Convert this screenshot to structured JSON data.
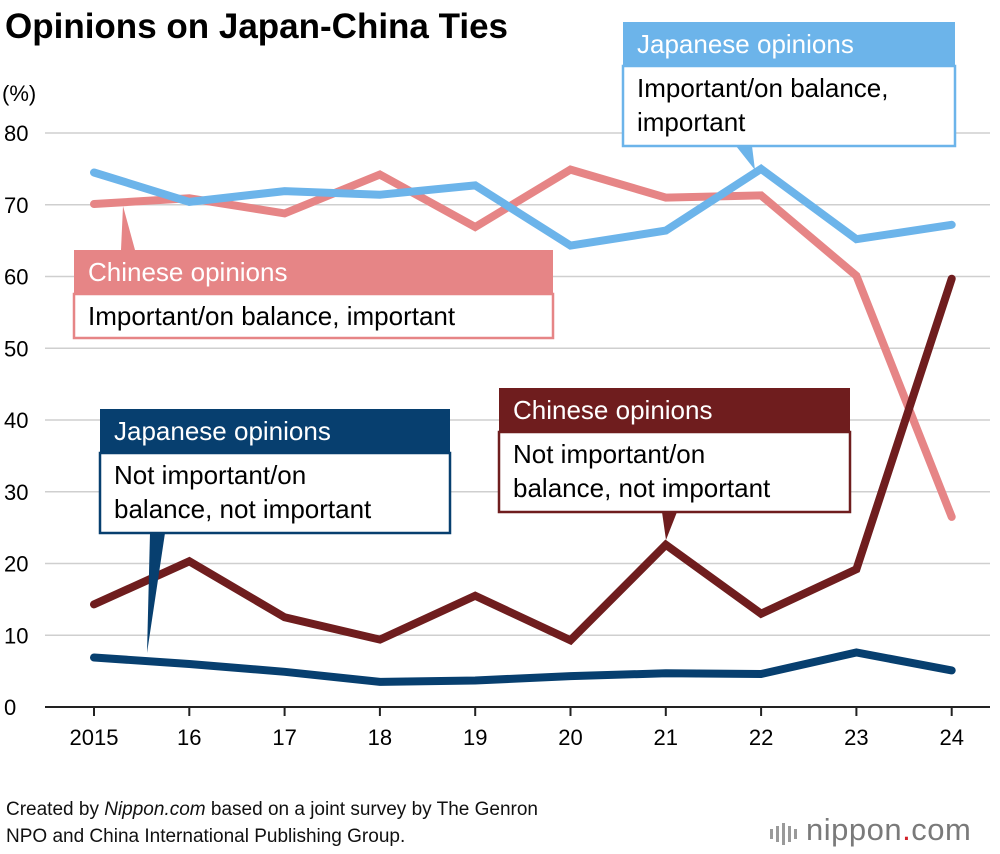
{
  "chart_data": {
    "type": "line",
    "title": "Opinions on Japan-China Ties",
    "ylabel": "(%)",
    "xlabel": "",
    "categories": [
      "2015",
      "16",
      "17",
      "18",
      "19",
      "20",
      "21",
      "22",
      "23",
      "24"
    ],
    "ylim": [
      0,
      80
    ],
    "yticks": [
      0,
      10,
      20,
      30,
      40,
      50,
      60,
      70,
      80
    ],
    "grid": true,
    "series": [
      {
        "key": "jp_important",
        "name": "Japanese opinions",
        "description_lines": [
          "Important/on balance,",
          "important"
        ],
        "color": "#6cb4ea",
        "values": [
          74.5,
          70.4,
          71.9,
          71.4,
          72.7,
          64.3,
          66.4,
          75.0,
          65.2,
          67.2
        ]
      },
      {
        "key": "cn_important",
        "name": "Chinese opinions",
        "description_lines": [
          "Important/on balance, important"
        ],
        "color": "#e68586",
        "values": [
          70.1,
          70.9,
          68.8,
          74.2,
          66.9,
          74.9,
          71.0,
          71.3,
          60.1,
          26.5
        ]
      },
      {
        "key": "jp_not_important",
        "name": "Japanese opinions",
        "description_lines": [
          "Not important/on",
          "balance, not important"
        ],
        "color": "#073f6f",
        "values": [
          6.9,
          6.0,
          4.9,
          3.5,
          3.7,
          4.3,
          4.7,
          4.6,
          7.6,
          5.1
        ]
      },
      {
        "key": "cn_not_important",
        "name": "Chinese opinions",
        "description_lines": [
          "Not important/on",
          "balance, not important"
        ],
        "color": "#6f1d1e",
        "values": [
          14.3,
          20.3,
          12.5,
          9.4,
          15.5,
          9.3,
          22.6,
          13.0,
          19.2,
          59.7
        ]
      }
    ]
  },
  "source": {
    "prefix": "Created by ",
    "site": "Nippon.com",
    "suffix_line1": " based on a joint survey by The Genron",
    "line2": "NPO and China International Publishing Group."
  },
  "logo": {
    "name": "nippon",
    "dot": ".",
    "tld": "com"
  }
}
